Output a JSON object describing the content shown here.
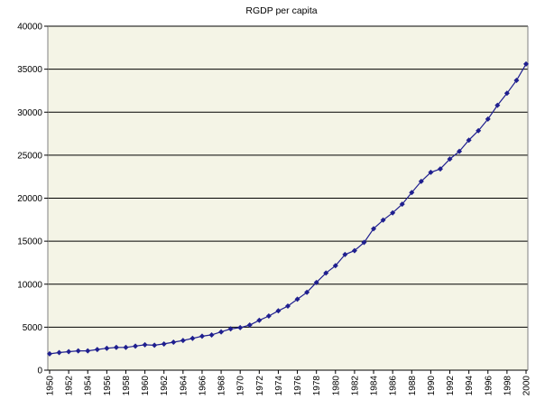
{
  "chart_data": {
    "type": "line",
    "title": "RGDP per capita",
    "xlabel": "",
    "ylabel": "",
    "ylim": [
      0,
      40000
    ],
    "y_ticks": [
      0,
      5000,
      10000,
      15000,
      20000,
      25000,
      30000,
      35000,
      40000
    ],
    "x_tick_labels": [
      "1950",
      "1952",
      "1954",
      "1956",
      "1958",
      "1960",
      "1962",
      "1964",
      "1966",
      "1968",
      "1970",
      "1972",
      "1974",
      "1976",
      "1978",
      "1980",
      "1982",
      "1984",
      "1986",
      "1988",
      "1990",
      "1992",
      "1994",
      "1996",
      "1998",
      "2000"
    ],
    "grid": "horizontal",
    "legend": "none",
    "colors": {
      "series": "#1f1f8f",
      "plot_background": "#f4f4e6",
      "gridline": "#000000"
    },
    "series": [
      {
        "x": [
          1950,
          1951,
          1952,
          1953,
          1954,
          1955,
          1956,
          1957,
          1958,
          1959,
          1960,
          1961,
          1962,
          1963,
          1964,
          1965,
          1966,
          1967,
          1968,
          1969,
          1970,
          1971,
          1972,
          1973,
          1974,
          1975,
          1976,
          1977,
          1978,
          1979,
          1980,
          1981,
          1982,
          1983,
          1984,
          1985,
          1986,
          1987,
          1988,
          1989,
          1990,
          1991,
          1992,
          1993,
          1994,
          1995,
          1996,
          1997,
          1998,
          1999,
          2000
        ],
        "values": [
          1900,
          2050,
          2150,
          2250,
          2250,
          2400,
          2550,
          2650,
          2650,
          2800,
          2950,
          2900,
          3050,
          3250,
          3450,
          3700,
          3950,
          4100,
          4450,
          4800,
          4950,
          5250,
          5800,
          6300,
          6900,
          7450,
          8250,
          9050,
          10200,
          11300,
          12150,
          13450,
          13900,
          14850,
          16450,
          17450,
          18300,
          19300,
          20650,
          21950,
          23000,
          23400,
          24550,
          25450,
          26750,
          27850,
          29200,
          30800,
          32200,
          33700,
          35600
        ]
      }
    ]
  }
}
